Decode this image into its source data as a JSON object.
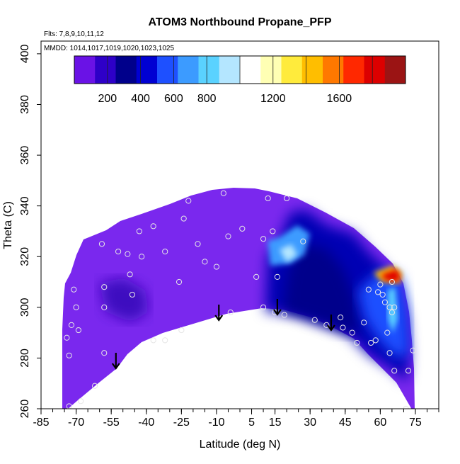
{
  "chart_data": {
    "type": "heatmap",
    "title": "ATOM3 Northbound Propane_PFP",
    "subtitle_flights": "Flts: 7,8,9,10,11,12",
    "subtitle_dates": "MMDD: 1014,1017,1019,1020,1023,1025",
    "xlabel": "Latitude (deg N)",
    "ylabel": "Theta (C)",
    "xlim": [
      -85,
      85
    ],
    "ylim": [
      260,
      405
    ],
    "x_ticks": [
      -85,
      -70,
      -55,
      -40,
      -25,
      -10,
      5,
      15,
      30,
      45,
      60,
      75
    ],
    "y_ticks": [
      260,
      280,
      300,
      320,
      340,
      360,
      380,
      400
    ],
    "colorbar": {
      "min": 0,
      "max": 2000,
      "ticks": [
        200,
        400,
        600,
        800,
        1200,
        1600
      ],
      "colors": [
        "#6a12e6",
        "#2e00c8",
        "#00008b",
        "#0000d2",
        "#1e50ff",
        "#3c9bff",
        "#5ad2ff",
        "#b4e6ff",
        "#ffffff",
        "#ffffb4",
        "#ffeb3c",
        "#ffbe00",
        "#ff7800",
        "#ff2800",
        "#dc0000",
        "#9b1414"
      ]
    },
    "tropopause_arrows_lat": [
      -53,
      -9,
      16,
      39
    ],
    "observations": [
      {
        "lat": -73,
        "theta": 261
      },
      {
        "lat": -68,
        "theta": 263
      },
      {
        "lat": -62,
        "theta": 269
      },
      {
        "lat": -58,
        "theta": 282
      },
      {
        "lat": -73,
        "theta": 281
      },
      {
        "lat": -74,
        "theta": 288
      },
      {
        "lat": -72,
        "theta": 293
      },
      {
        "lat": -69,
        "theta": 291
      },
      {
        "lat": -58,
        "theta": 300
      },
      {
        "lat": -58,
        "theta": 308
      },
      {
        "lat": -71,
        "theta": 307
      },
      {
        "lat": -70,
        "theta": 300
      },
      {
        "lat": -59,
        "theta": 325
      },
      {
        "lat": -52,
        "theta": 322
      },
      {
        "lat": -48,
        "theta": 321
      },
      {
        "lat": -47,
        "theta": 313
      },
      {
        "lat": -43,
        "theta": 330
      },
      {
        "lat": -37,
        "theta": 332
      },
      {
        "lat": -42,
        "theta": 320
      },
      {
        "lat": -32,
        "theta": 322
      },
      {
        "lat": -24,
        "theta": 335
      },
      {
        "lat": -26,
        "theta": 310
      },
      {
        "lat": -18,
        "theta": 325
      },
      {
        "lat": -15,
        "theta": 318
      },
      {
        "lat": -46,
        "theta": 305
      },
      {
        "lat": -37,
        "theta": 287
      },
      {
        "lat": -32,
        "theta": 287
      },
      {
        "lat": -25,
        "theta": 291
      },
      {
        "lat": -22,
        "theta": 342
      },
      {
        "lat": -10,
        "theta": 316
      },
      {
        "lat": -7,
        "theta": 345
      },
      {
        "lat": -5,
        "theta": 328
      },
      {
        "lat": 1,
        "theta": 331
      },
      {
        "lat": -4,
        "theta": 298
      },
      {
        "lat": 7,
        "theta": 312
      },
      {
        "lat": 10,
        "theta": 327
      },
      {
        "lat": 12,
        "theta": 343
      },
      {
        "lat": 14,
        "theta": 330
      },
      {
        "lat": 16,
        "theta": 312
      },
      {
        "lat": 20,
        "theta": 343
      },
      {
        "lat": 10,
        "theta": 300
      },
      {
        "lat": 15,
        "theta": 298
      },
      {
        "lat": 19,
        "theta": 297
      },
      {
        "lat": 27,
        "theta": 326
      },
      {
        "lat": 32,
        "theta": 295
      },
      {
        "lat": 37,
        "theta": 293
      },
      {
        "lat": 44,
        "theta": 292
      },
      {
        "lat": 43,
        "theta": 296
      },
      {
        "lat": 48,
        "theta": 290
      },
      {
        "lat": 50,
        "theta": 286
      },
      {
        "lat": 53,
        "theta": 294
      },
      {
        "lat": 56,
        "theta": 286
      },
      {
        "lat": 58,
        "theta": 287
      },
      {
        "lat": 55,
        "theta": 307
      },
      {
        "lat": 59,
        "theta": 306
      },
      {
        "lat": 60,
        "theta": 309
      },
      {
        "lat": 61,
        "theta": 305
      },
      {
        "lat": 62,
        "theta": 302
      },
      {
        "lat": 64,
        "theta": 300
      },
      {
        "lat": 65,
        "theta": 298
      },
      {
        "lat": 65,
        "theta": 310
      },
      {
        "lat": 66,
        "theta": 300
      },
      {
        "lat": 63,
        "theta": 290
      },
      {
        "lat": 64,
        "theta": 282
      },
      {
        "lat": 66,
        "theta": 275
      },
      {
        "lat": 72,
        "theta": 275
      },
      {
        "lat": 74,
        "theta": 283
      },
      {
        "lat": 71,
        "theta": 260
      }
    ]
  }
}
